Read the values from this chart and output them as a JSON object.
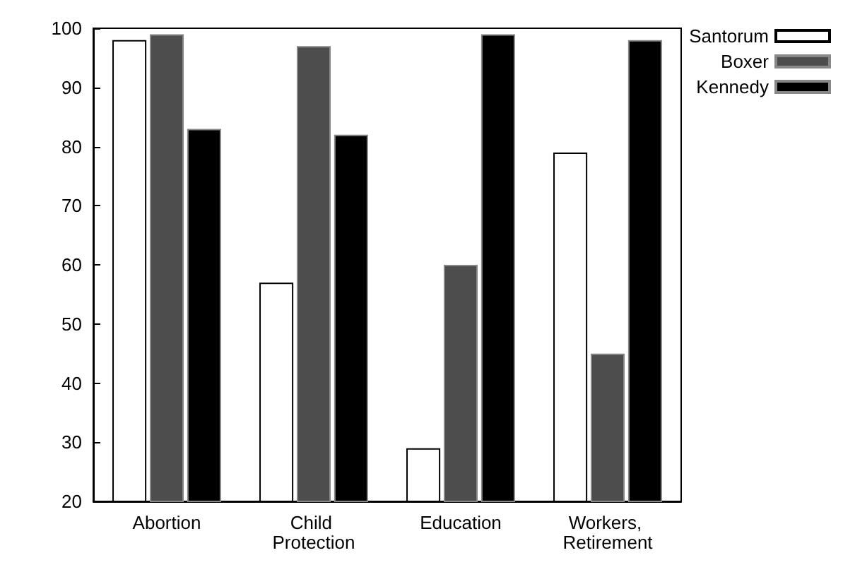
{
  "chart_data": {
    "type": "bar",
    "categories": [
      "Abortion",
      "Child Protection",
      "Education",
      "Workers, Retirement"
    ],
    "series": [
      {
        "name": "Santorum",
        "color": "#ffffff",
        "values": [
          98,
          57,
          29,
          79
        ]
      },
      {
        "name": "Boxer",
        "color": "#4d4d4d",
        "values": [
          99,
          97,
          60,
          45
        ]
      },
      {
        "name": "Kennedy",
        "color": "#000000",
        "values": [
          83,
          82,
          99,
          98
        ]
      }
    ],
    "ylim": [
      20,
      100
    ],
    "yticks": [
      20,
      30,
      40,
      50,
      60,
      70,
      80,
      90,
      100
    ],
    "grid": false,
    "legend": "top right"
  }
}
